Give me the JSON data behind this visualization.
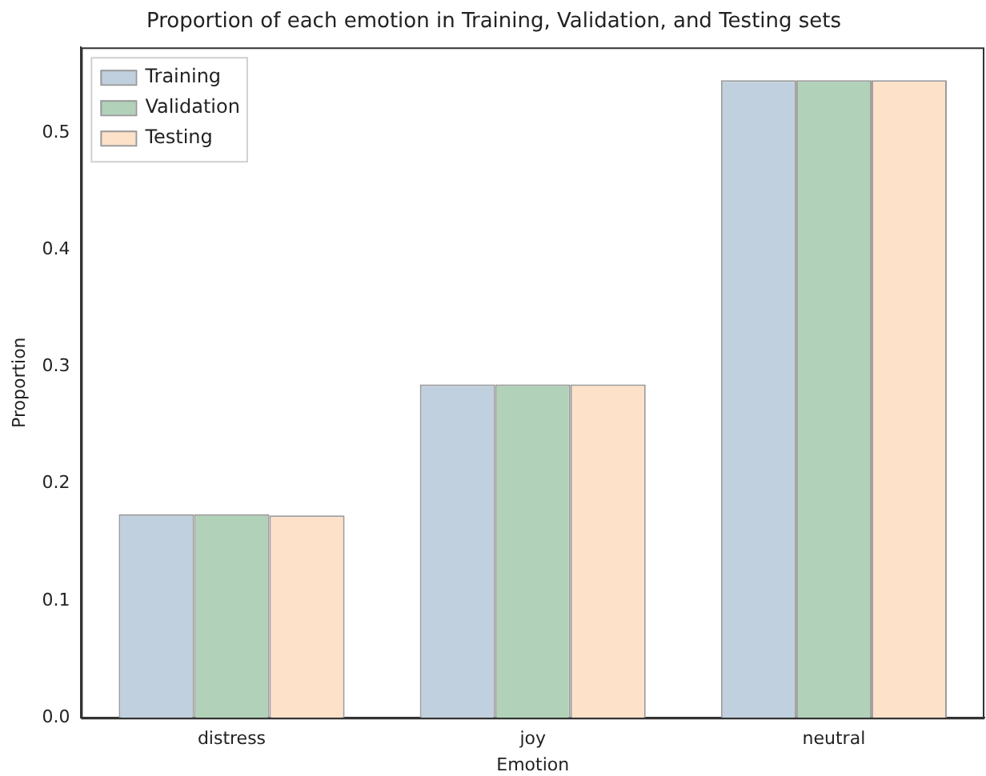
{
  "chart_data": {
    "type": "bar",
    "title": "Proportion of each emotion in Training, Validation, and Testing sets",
    "xlabel": "Emotion",
    "ylabel": "Proportion",
    "categories": [
      "distress",
      "joy",
      "neutral"
    ],
    "series": [
      {
        "name": "Training",
        "color": "#c0d0de",
        "values": [
          0.174,
          0.285,
          0.545
        ]
      },
      {
        "name": "Validation",
        "color": "#b1d1b8",
        "values": [
          0.174,
          0.285,
          0.545
        ]
      },
      {
        "name": "Testing",
        "color": "#fde1c8",
        "values": [
          0.173,
          0.285,
          0.545
        ]
      }
    ],
    "ylim": [
      0,
      0.573
    ],
    "yticks": [
      {
        "value": 0,
        "label": "0.0"
      },
      0.1,
      0.2,
      0.3,
      0.4,
      0.5
    ],
    "grid": false,
    "legend": "top left"
  }
}
